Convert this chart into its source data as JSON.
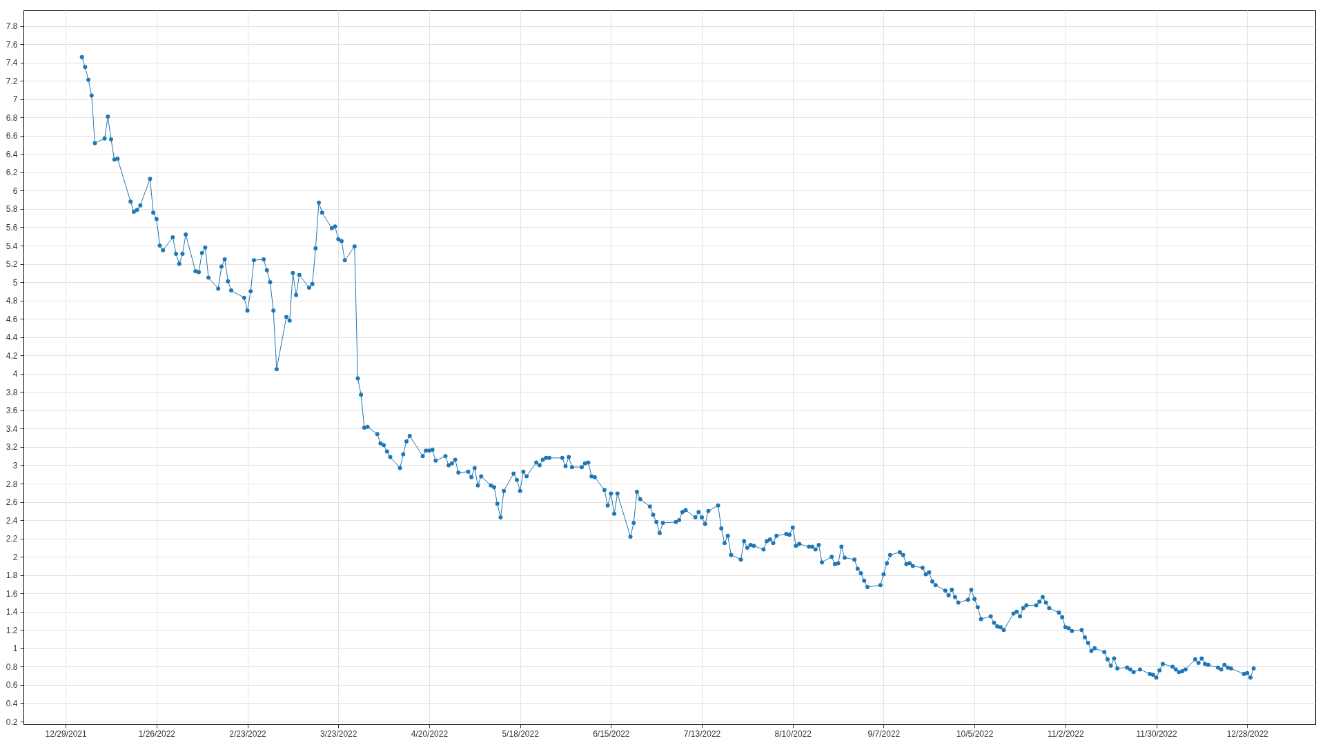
{
  "chart_data": {
    "type": "line",
    "x": [
      "2022-01-03",
      "2022-01-04",
      "2022-01-05",
      "2022-01-06",
      "2022-01-07",
      "2022-01-10",
      "2022-01-11",
      "2022-01-12",
      "2022-01-13",
      "2022-01-14",
      "2022-01-18",
      "2022-01-19",
      "2022-01-20",
      "2022-01-21",
      "2022-01-24",
      "2022-01-25",
      "2022-01-26",
      "2022-01-27",
      "2022-01-28",
      "2022-01-31",
      "2022-02-01",
      "2022-02-02",
      "2022-02-03",
      "2022-02-04",
      "2022-02-07",
      "2022-02-08",
      "2022-02-09",
      "2022-02-10",
      "2022-02-11",
      "2022-02-14",
      "2022-02-15",
      "2022-02-16",
      "2022-02-17",
      "2022-02-18",
      "2022-02-22",
      "2022-02-23",
      "2022-02-24",
      "2022-02-25",
      "2022-02-28",
      "2022-03-01",
      "2022-03-02",
      "2022-03-03",
      "2022-03-04",
      "2022-03-07",
      "2022-03-08",
      "2022-03-09",
      "2022-03-10",
      "2022-03-11",
      "2022-03-14",
      "2022-03-15",
      "2022-03-16",
      "2022-03-17",
      "2022-03-18",
      "2022-03-21",
      "2022-03-22",
      "2022-03-23",
      "2022-03-24",
      "2022-03-25",
      "2022-03-28",
      "2022-03-29",
      "2022-03-30",
      "2022-03-31",
      "2022-04-01",
      "2022-04-04",
      "2022-04-05",
      "2022-04-06",
      "2022-04-07",
      "2022-04-08",
      "2022-04-11",
      "2022-04-12",
      "2022-04-13",
      "2022-04-14",
      "2022-04-18",
      "2022-04-19",
      "2022-04-20",
      "2022-04-21",
      "2022-04-22",
      "2022-04-25",
      "2022-04-26",
      "2022-04-27",
      "2022-04-28",
      "2022-04-29",
      "2022-05-02",
      "2022-05-03",
      "2022-05-04",
      "2022-05-05",
      "2022-05-06",
      "2022-05-09",
      "2022-05-10",
      "2022-05-11",
      "2022-05-12",
      "2022-05-13",
      "2022-05-16",
      "2022-05-17",
      "2022-05-18",
      "2022-05-19",
      "2022-05-20",
      "2022-05-23",
      "2022-05-24",
      "2022-05-25",
      "2022-05-26",
      "2022-05-27",
      "2022-05-31",
      "2022-06-01",
      "2022-06-02",
      "2022-06-03",
      "2022-06-06",
      "2022-06-07",
      "2022-06-08",
      "2022-06-09",
      "2022-06-10",
      "2022-06-13",
      "2022-06-14",
      "2022-06-15",
      "2022-06-16",
      "2022-06-17",
      "2022-06-21",
      "2022-06-22",
      "2022-06-23",
      "2022-06-24",
      "2022-06-27",
      "2022-06-28",
      "2022-06-29",
      "2022-06-30",
      "2022-07-01",
      "2022-07-05",
      "2022-07-06",
      "2022-07-07",
      "2022-07-08",
      "2022-07-11",
      "2022-07-12",
      "2022-07-13",
      "2022-07-14",
      "2022-07-15",
      "2022-07-18",
      "2022-07-19",
      "2022-07-20",
      "2022-07-21",
      "2022-07-22",
      "2022-07-25",
      "2022-07-26",
      "2022-07-27",
      "2022-07-28",
      "2022-07-29",
      "2022-08-01",
      "2022-08-02",
      "2022-08-03",
      "2022-08-04",
      "2022-08-05",
      "2022-08-08",
      "2022-08-09",
      "2022-08-10",
      "2022-08-11",
      "2022-08-12",
      "2022-08-15",
      "2022-08-16",
      "2022-08-17",
      "2022-08-18",
      "2022-08-19",
      "2022-08-22",
      "2022-08-23",
      "2022-08-24",
      "2022-08-25",
      "2022-08-26",
      "2022-08-29",
      "2022-08-30",
      "2022-08-31",
      "2022-09-01",
      "2022-09-02",
      "2022-09-06",
      "2022-09-07",
      "2022-09-08",
      "2022-09-09",
      "2022-09-12",
      "2022-09-13",
      "2022-09-14",
      "2022-09-15",
      "2022-09-16",
      "2022-09-19",
      "2022-09-20",
      "2022-09-21",
      "2022-09-22",
      "2022-09-23",
      "2022-09-26",
      "2022-09-27",
      "2022-09-28",
      "2022-09-29",
      "2022-09-30",
      "2022-10-03",
      "2022-10-04",
      "2022-10-05",
      "2022-10-06",
      "2022-10-07",
      "2022-10-10",
      "2022-10-11",
      "2022-10-12",
      "2022-10-13",
      "2022-10-14",
      "2022-10-17",
      "2022-10-18",
      "2022-10-19",
      "2022-10-20",
      "2022-10-21",
      "2022-10-24",
      "2022-10-25",
      "2022-10-26",
      "2022-10-27",
      "2022-10-28",
      "2022-10-31",
      "2022-11-01",
      "2022-11-02",
      "2022-11-03",
      "2022-11-04",
      "2022-11-07",
      "2022-11-08",
      "2022-11-09",
      "2022-11-10",
      "2022-11-11",
      "2022-11-14",
      "2022-11-15",
      "2022-11-16",
      "2022-11-17",
      "2022-11-18",
      "2022-11-21",
      "2022-11-22",
      "2022-11-23",
      "2022-11-25",
      "2022-11-28",
      "2022-11-29",
      "2022-11-30",
      "2022-12-01",
      "2022-12-02",
      "2022-12-05",
      "2022-12-06",
      "2022-12-07",
      "2022-12-08",
      "2022-12-09",
      "2022-12-12",
      "2022-12-13",
      "2022-12-14",
      "2022-12-15",
      "2022-12-16",
      "2022-12-19",
      "2022-12-20",
      "2022-12-21",
      "2022-12-22",
      "2022-12-23",
      "2022-12-27",
      "2022-12-28",
      "2022-12-29",
      "2022-12-30"
    ],
    "series": [
      {
        "color": "#1f77b4",
        "values": [
          7.46,
          7.35,
          7.21,
          7.04,
          6.52,
          6.57,
          6.81,
          6.56,
          6.34,
          6.35,
          5.88,
          5.77,
          5.79,
          5.84,
          6.13,
          5.76,
          5.69,
          5.4,
          5.35,
          5.49,
          5.31,
          5.2,
          5.31,
          5.52,
          5.12,
          5.11,
          5.32,
          5.38,
          5.05,
          4.93,
          5.17,
          5.25,
          5.01,
          4.91,
          4.83,
          4.69,
          4.9,
          5.24,
          5.25,
          5.13,
          5.0,
          4.69,
          4.05,
          4.62,
          4.58,
          5.1,
          4.86,
          5.08,
          4.94,
          4.98,
          5.37,
          5.87,
          5.76,
          5.59,
          5.61,
          5.47,
          5.45,
          5.24,
          5.39,
          3.95,
          3.77,
          3.41,
          3.42,
          3.34,
          3.24,
          3.22,
          3.15,
          3.09,
          2.97,
          3.12,
          3.26,
          3.32,
          3.1,
          3.16,
          3.16,
          3.17,
          3.05,
          3.1,
          3.0,
          3.02,
          3.06,
          2.92,
          2.93,
          2.87,
          2.97,
          2.78,
          2.88,
          2.78,
          2.76,
          2.58,
          2.43,
          2.72,
          2.91,
          2.84,
          2.72,
          2.93,
          2.88,
          3.03,
          3.0,
          3.06,
          3.08,
          3.08,
          3.08,
          2.99,
          3.09,
          2.98,
          2.98,
          3.02,
          3.03,
          2.88,
          2.87,
          2.73,
          2.56,
          2.69,
          2.47,
          2.69,
          2.22,
          2.37,
          2.71,
          2.63,
          2.55,
          2.46,
          2.38,
          2.26,
          2.37,
          2.38,
          2.4,
          2.49,
          2.51,
          2.43,
          2.49,
          2.43,
          2.36,
          2.5,
          2.56,
          2.31,
          2.15,
          2.23,
          2.02,
          1.97,
          2.17,
          2.1,
          2.13,
          2.12,
          2.08,
          2.17,
          2.19,
          2.15,
          2.23,
          2.25,
          2.24,
          2.32,
          2.12,
          2.14,
          2.11,
          2.11,
          2.08,
          2.13,
          1.94,
          2.0,
          1.92,
          1.93,
          2.11,
          1.99,
          1.97,
          1.87,
          1.82,
          1.74,
          1.67,
          1.69,
          1.81,
          1.93,
          2.02,
          2.05,
          2.02,
          1.92,
          1.93,
          1.9,
          1.88,
          1.81,
          1.83,
          1.73,
          1.69,
          1.63,
          1.58,
          1.64,
          1.56,
          1.5,
          1.53,
          1.64,
          1.54,
          1.45,
          1.32,
          1.35,
          1.28,
          1.24,
          1.23,
          1.2,
          1.38,
          1.4,
          1.35,
          1.44,
          1.47,
          1.47,
          1.51,
          1.56,
          1.5,
          1.44,
          1.39,
          1.34,
          1.23,
          1.22,
          1.19,
          1.2,
          1.12,
          1.06,
          0.97,
          1.0,
          0.96,
          0.88,
          0.81,
          0.89,
          0.78,
          0.79,
          0.77,
          0.74,
          0.77,
          0.72,
          0.71,
          0.68,
          0.76,
          0.83,
          0.8,
          0.77,
          0.74,
          0.75,
          0.77,
          0.88,
          0.84,
          0.89,
          0.83,
          0.82,
          0.79,
          0.77,
          0.82,
          0.79,
          0.78,
          0.72,
          0.73,
          0.68,
          0.78
        ]
      }
    ],
    "xlim": [
      "2021-12-16",
      "2023-01-18"
    ],
    "xticks": [
      {
        "value": "2021-12-29",
        "label": "12/29/2021"
      },
      {
        "value": "2022-01-26",
        "label": "1/26/2022"
      },
      {
        "value": "2022-02-23",
        "label": "2/23/2022"
      },
      {
        "value": "2022-03-23",
        "label": "3/23/2022"
      },
      {
        "value": "2022-04-20",
        "label": "4/20/2022"
      },
      {
        "value": "2022-05-18",
        "label": "5/18/2022"
      },
      {
        "value": "2022-06-15",
        "label": "6/15/2022"
      },
      {
        "value": "2022-07-13",
        "label": "7/13/2022"
      },
      {
        "value": "2022-08-10",
        "label": "8/10/2022"
      },
      {
        "value": "2022-09-07",
        "label": "9/7/2022"
      },
      {
        "value": "2022-10-05",
        "label": "10/5/2022"
      },
      {
        "value": "2022-11-02",
        "label": "11/2/2022"
      },
      {
        "value": "2022-11-30",
        "label": "11/30/2022"
      },
      {
        "value": "2022-12-28",
        "label": "12/28/2022"
      }
    ],
    "ylim": [
      0.17,
      7.97
    ],
    "yticks": [
      0.2,
      0.4,
      0.6,
      0.8,
      1,
      1.2,
      1.4,
      1.6,
      1.8,
      2,
      2.2,
      2.4,
      2.6,
      2.8,
      3,
      3.2,
      3.4,
      3.6,
      3.8,
      4,
      4.2,
      4.4,
      4.6,
      4.8,
      5,
      5.2,
      5.4,
      5.6,
      5.8,
      6,
      6.2,
      6.4,
      6.6,
      6.8,
      7,
      7.2,
      7.4,
      7.6,
      7.8
    ],
    "grid": true,
    "marker": "circle",
    "line_style": "solid"
  }
}
